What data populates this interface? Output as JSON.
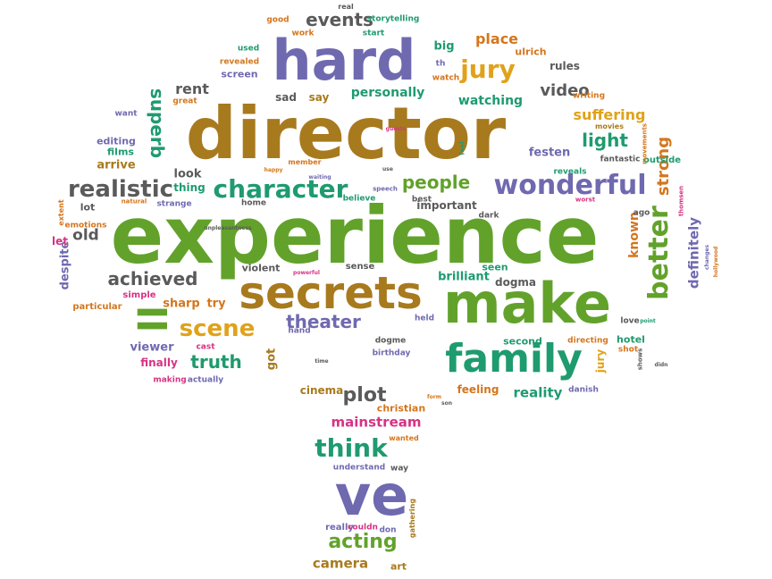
{
  "palette": {
    "green": "#62a22b",
    "brown": "#a87a1e",
    "purple": "#6f69b0",
    "orange": "#d4761d",
    "pink": "#d63384",
    "grey": "#5a5a5a",
    "teal": "#1e9b6f",
    "gold": "#e0a21a"
  },
  "words": [
    {
      "text": "experience",
      "color": "green"
    },
    {
      "text": "director",
      "color": "brown"
    },
    {
      "text": "hard",
      "color": "purple"
    },
    {
      "text": "make",
      "color": "green"
    },
    {
      "text": "secrets",
      "color": "brown"
    },
    {
      "text": "ve",
      "color": "purple"
    },
    {
      "text": "ll",
      "color": "green"
    },
    {
      "text": "family",
      "color": "teal"
    },
    {
      "text": "wonderful",
      "color": "purple"
    },
    {
      "text": "character",
      "color": "teal"
    },
    {
      "text": "jury",
      "color": "gold"
    },
    {
      "text": "better",
      "color": "green"
    },
    {
      "text": "scene",
      "color": "gold"
    },
    {
      "text": "think",
      "color": "teal"
    },
    {
      "text": "realistic",
      "color": "grey"
    },
    {
      "text": "events",
      "color": "grey"
    },
    {
      "text": "people",
      "color": "green"
    },
    {
      "text": "truth",
      "color": "teal"
    },
    {
      "text": "acting",
      "color": "green"
    },
    {
      "text": "theater",
      "color": "purple"
    },
    {
      "text": "plot",
      "color": "grey"
    },
    {
      "text": "achieved",
      "color": "grey"
    },
    {
      "text": "superb",
      "color": "teal"
    },
    {
      "text": "light",
      "color": "teal"
    },
    {
      "text": "strong",
      "color": "orange"
    },
    {
      "text": "suffering",
      "color": "gold"
    },
    {
      "text": "video",
      "color": "grey"
    },
    {
      "text": "place",
      "color": "orange"
    },
    {
      "text": "mainstream",
      "color": "pink"
    },
    {
      "text": "camera",
      "color": "brown"
    },
    {
      "text": "definitely",
      "color": "purple"
    },
    {
      "text": "rent",
      "color": "grey"
    },
    {
      "text": "old",
      "color": "grey"
    },
    {
      "text": "known",
      "color": "orange"
    },
    {
      "text": "reality",
      "color": "teal"
    },
    {
      "text": "watching",
      "color": "teal"
    },
    {
      "text": "personally",
      "color": "teal"
    },
    {
      "text": "viewer",
      "color": "purple"
    },
    {
      "text": "sharp",
      "color": "orange"
    },
    {
      "text": "try",
      "color": "orange"
    },
    {
      "text": "festen",
      "color": "purple"
    },
    {
      "text": "big",
      "color": "teal"
    },
    {
      "text": "got",
      "color": "brown"
    },
    {
      "text": "brilliant",
      "color": "teal"
    },
    {
      "text": "feeling",
      "color": "orange"
    },
    {
      "text": "cinema",
      "color": "brown"
    },
    {
      "text": "seen",
      "color": "teal"
    },
    {
      "text": "dogma",
      "color": "grey"
    },
    {
      "text": "finally",
      "color": "pink"
    },
    {
      "text": "important",
      "color": "grey"
    },
    {
      "text": "sad",
      "color": "grey"
    },
    {
      "text": "say",
      "color": "brown"
    },
    {
      "text": "arrive",
      "color": "brown"
    },
    {
      "text": "look",
      "color": "grey"
    },
    {
      "text": "thing",
      "color": "teal"
    },
    {
      "text": "editing",
      "color": "purple"
    },
    {
      "text": "films",
      "color": "teal"
    },
    {
      "text": "screen",
      "color": "purple"
    },
    {
      "text": "rules",
      "color": "grey"
    },
    {
      "text": "ulrich",
      "color": "orange"
    },
    {
      "text": "jury",
      "color": "gold"
    },
    {
      "text": "hotel",
      "color": "teal"
    },
    {
      "text": "second",
      "color": "teal"
    },
    {
      "text": "christian",
      "color": "orange"
    },
    {
      "text": "despite",
      "color": "purple"
    },
    {
      "text": "let",
      "color": "pink"
    },
    {
      "text": "lot",
      "color": "grey"
    },
    {
      "text": "violent",
      "color": "grey"
    },
    {
      "text": "sense",
      "color": "grey"
    },
    {
      "text": "simple",
      "color": "pink"
    },
    {
      "text": "particular",
      "color": "orange"
    },
    {
      "text": "cast",
      "color": "pink"
    },
    {
      "text": "making",
      "color": "pink"
    },
    {
      "text": "actually",
      "color": "purple"
    },
    {
      "text": "hand",
      "color": "purple"
    },
    {
      "text": "dogme",
      "color": "grey"
    },
    {
      "text": "birthday",
      "color": "purple"
    },
    {
      "text": "held",
      "color": "purple"
    },
    {
      "text": "love",
      "color": "grey"
    },
    {
      "text": "directing",
      "color": "orange"
    },
    {
      "text": "shot",
      "color": "orange"
    },
    {
      "text": "danish",
      "color": "purple"
    },
    {
      "text": "reveals",
      "color": "teal"
    },
    {
      "text": "fantastic",
      "color": "grey"
    },
    {
      "text": "outside",
      "color": "teal"
    },
    {
      "text": "ago",
      "color": "grey"
    },
    {
      "text": "dark",
      "color": "grey"
    },
    {
      "text": "best",
      "color": "grey"
    },
    {
      "text": "believe",
      "color": "teal"
    },
    {
      "text": "home",
      "color": "grey"
    },
    {
      "text": "strange",
      "color": "purple"
    },
    {
      "text": "emotions",
      "color": "orange"
    },
    {
      "text": "natural",
      "color": "orange"
    },
    {
      "text": "extent",
      "color": "orange"
    },
    {
      "text": "want",
      "color": "purple"
    },
    {
      "text": "great",
      "color": "orange"
    },
    {
      "text": "revealed",
      "color": "orange"
    },
    {
      "text": "used",
      "color": "teal"
    },
    {
      "text": "good",
      "color": "orange"
    },
    {
      "text": "work",
      "color": "orange"
    },
    {
      "text": "start",
      "color": "teal"
    },
    {
      "text": "storytelling",
      "color": "teal"
    },
    {
      "text": "real",
      "color": "grey"
    },
    {
      "text": "th",
      "color": "purple"
    },
    {
      "text": "watch",
      "color": "orange"
    },
    {
      "text": "writing",
      "color": "orange"
    },
    {
      "text": "movies",
      "color": "brown"
    },
    {
      "text": "understand",
      "color": "purple"
    },
    {
      "text": "way",
      "color": "grey"
    },
    {
      "text": "wanted",
      "color": "orange"
    },
    {
      "text": "really",
      "color": "purple"
    },
    {
      "text": "couldn",
      "color": "pink"
    },
    {
      "text": "don",
      "color": "purple"
    },
    {
      "text": "art",
      "color": "brown"
    },
    {
      "text": "gathering",
      "color": "brown"
    },
    {
      "text": "member",
      "color": "orange"
    },
    {
      "text": "happy",
      "color": "orange"
    },
    {
      "text": "waiting",
      "color": "purple"
    },
    {
      "text": "speech",
      "color": "purple"
    },
    {
      "text": "use",
      "color": "grey"
    },
    {
      "text": "worst",
      "color": "pink"
    },
    {
      "text": "thomsen",
      "color": "pink"
    },
    {
      "text": "changes",
      "color": "purple"
    },
    {
      "text": "hollywood",
      "color": "orange"
    },
    {
      "text": "movements",
      "color": "orange"
    },
    {
      "text": "powerful",
      "color": "pink"
    },
    {
      "text": "unpleasantness",
      "color": "grey"
    },
    {
      "text": "feel",
      "color": "teal"
    },
    {
      "text": "guests",
      "color": "pink"
    },
    {
      "text": "time",
      "color": "grey"
    },
    {
      "text": "form",
      "color": "orange"
    },
    {
      "text": "son",
      "color": "grey"
    },
    {
      "text": "point",
      "color": "teal"
    },
    {
      "text": "didn",
      "color": "grey"
    },
    {
      "text": "shows",
      "color": "grey"
    },
    {
      "text": "know",
      "color": "teal"
    }
  ]
}
